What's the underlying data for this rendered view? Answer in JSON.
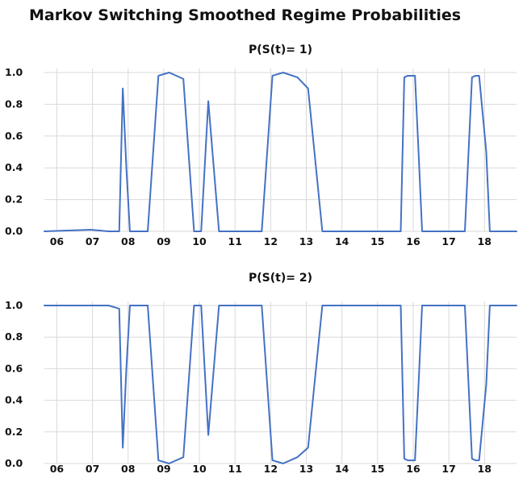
{
  "chart_data": {
    "title": "Markov Switching Smoothed Regime Probabilities",
    "type": "line",
    "line_color": "#4472C4",
    "grid_color": "#D9D9D9",
    "x_tick_labels": [
      "06",
      "07",
      "08",
      "09",
      "10",
      "11",
      "12",
      "13",
      "14",
      "15",
      "16",
      "17",
      "18"
    ],
    "x_tick_values": [
      2006,
      2007,
      2008,
      2009,
      2010,
      2011,
      2012,
      2013,
      2014,
      2015,
      2016,
      2017,
      2018
    ],
    "xlim": [
      2005.65,
      2018.9
    ],
    "panels": [
      {
        "title": "P(S(t)= 1)",
        "ylim": [
          0,
          1
        ],
        "y_tick_labels": [
          "1.0",
          "0.8",
          "0.6",
          "0.4",
          "0.2",
          "0.0"
        ],
        "y_tick_values": [
          1.0,
          0.8,
          0.6,
          0.4,
          0.2,
          0.0
        ],
        "series": [
          {
            "x": [
              2005.65,
              2006.95,
              2007.45,
              2007.75,
              2007.85,
              2007.95,
              2008.05,
              2008.25,
              2008.55,
              2008.85,
              2009.15,
              2009.55,
              2009.85,
              2010.05,
              2010.25,
              2010.55,
              2011.45,
              2011.75,
              2012.05,
              2012.35,
              2012.75,
              2013.05,
              2013.45,
              2013.75,
              2014.05,
              2015.45,
              2015.65,
              2015.75,
              2015.85,
              2016.05,
              2016.15,
              2016.25,
              2016.35,
              2016.45,
              2016.55,
              2017.25,
              2017.45,
              2017.65,
              2017.75,
              2017.85,
              2018.05,
              2018.15,
              2018.35,
              2018.55,
              2018.9
            ],
            "y": [
              0.0,
              0.01,
              0.0,
              0.0,
              0.9,
              0.4,
              0.0,
              0.0,
              0.0,
              0.98,
              1.0,
              0.96,
              0.0,
              0.0,
              0.82,
              0.0,
              0.0,
              0.0,
              0.98,
              1.0,
              0.97,
              0.9,
              0.0,
              0.0,
              0.0,
              0.0,
              0.0,
              0.97,
              0.98,
              0.98,
              0.5,
              0.0,
              0.0,
              0.0,
              0.0,
              0.0,
              0.0,
              0.97,
              0.98,
              0.98,
              0.5,
              0.0,
              0.0,
              0.0,
              0.0
            ]
          }
        ]
      },
      {
        "title": "P(S(t)= 2)",
        "ylim": [
          0,
          1
        ],
        "y_tick_labels": [
          "1.0",
          "0.8",
          "0.6",
          "0.4",
          "0.2",
          "0.0"
        ],
        "y_tick_values": [
          1.0,
          0.8,
          0.6,
          0.4,
          0.2,
          0.0
        ],
        "series": [
          {
            "x": [
              2005.65,
              2006.95,
              2007.45,
              2007.75,
              2007.85,
              2007.95,
              2008.05,
              2008.25,
              2008.55,
              2008.85,
              2009.15,
              2009.55,
              2009.85,
              2010.05,
              2010.25,
              2010.55,
              2011.45,
              2011.75,
              2012.05,
              2012.35,
              2012.75,
              2013.05,
              2013.45,
              2013.75,
              2014.05,
              2015.45,
              2015.65,
              2015.75,
              2015.85,
              2016.05,
              2016.15,
              2016.25,
              2016.35,
              2016.45,
              2016.55,
              2017.25,
              2017.45,
              2017.65,
              2017.75,
              2017.85,
              2018.05,
              2018.15,
              2018.35,
              2018.55,
              2018.9
            ],
            "y": [
              1.0,
              1.0,
              1.0,
              0.98,
              0.1,
              0.6,
              1.0,
              1.0,
              1.0,
              0.02,
              0.0,
              0.04,
              1.0,
              1.0,
              0.18,
              1.0,
              1.0,
              1.0,
              0.02,
              0.0,
              0.04,
              0.1,
              1.0,
              1.0,
              1.0,
              1.0,
              1.0,
              0.03,
              0.02,
              0.02,
              0.5,
              1.0,
              1.0,
              1.0,
              1.0,
              1.0,
              1.0,
              0.03,
              0.02,
              0.02,
              0.5,
              1.0,
              1.0,
              1.0,
              1.0
            ]
          }
        ]
      }
    ]
  }
}
